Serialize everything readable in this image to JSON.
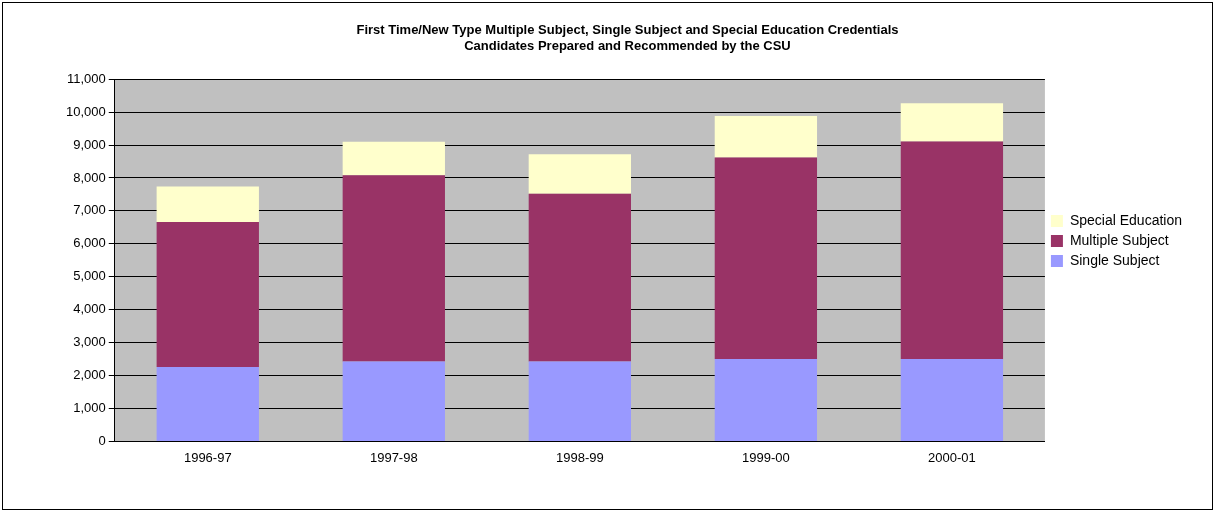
{
  "chart_data": {
    "type": "bar",
    "stacked": true,
    "title": "First Time/New Type Multiple Subject, Single Subject and Special Education Credentials Candidates Prepared and Recommended by the CSU",
    "categories": [
      "1996-97",
      "1997-98",
      "1998-99",
      "1999-00",
      "2000-01"
    ],
    "series": [
      {
        "name": "Single Subject",
        "color": "#9999ff",
        "values": [
          2260,
          2430,
          2430,
          2500,
          2500
        ]
      },
      {
        "name": "Multiple Subject",
        "color": "#993366",
        "values": [
          4400,
          5650,
          5090,
          6120,
          6610
        ]
      },
      {
        "name": "Special Education",
        "color": "#ffffcc",
        "values": [
          1080,
          1020,
          1200,
          1260,
          1160
        ]
      }
    ],
    "ylim": [
      0,
      11000
    ],
    "yticks": [
      0,
      {
        "value": 1000,
        "label": "1,000"
      },
      {
        "value": 2000,
        "label": "2,000"
      },
      {
        "value": 3000,
        "label": "3,000"
      },
      {
        "value": 4000,
        "label": "4,000"
      },
      {
        "value": 5000,
        "label": "5,000"
      },
      {
        "value": 6000,
        "label": "6,000"
      },
      {
        "value": 7000,
        "label": "7,000"
      },
      {
        "value": 8000,
        "label": "8,000"
      },
      {
        "value": 9000,
        "label": "9,000"
      },
      {
        "value": 10000,
        "label": "10,000"
      },
      {
        "value": 11000,
        "label": "11,000"
      }
    ],
    "grid": "y",
    "legend": "right"
  }
}
